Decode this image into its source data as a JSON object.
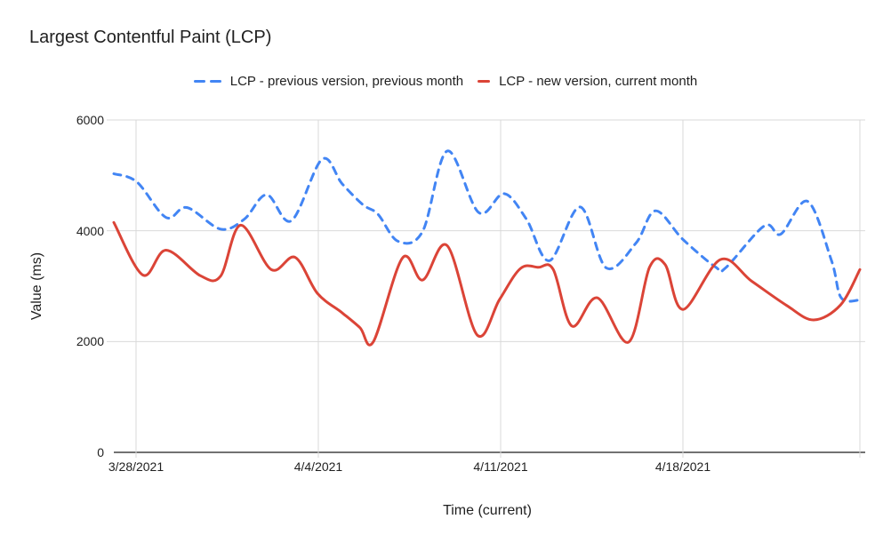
{
  "chart_data": {
    "type": "line",
    "title": "Largest Contentful Paint (LCP)",
    "xlabel": "Time (current)",
    "ylabel": "Value (ms)",
    "ylim": [
      0,
      6000
    ],
    "grid": true,
    "smooth": true,
    "legend_position": "top",
    "background": "#ffffff",
    "colors": {
      "grid": "#d9d9d9",
      "axis": "#444444",
      "text": "#202124"
    },
    "y_ticks": [
      {
        "label": "0",
        "value": 0
      },
      {
        "label": "2000",
        "value": 2000
      },
      {
        "label": "4000",
        "value": 4000
      },
      {
        "label": "6000",
        "value": 6000
      }
    ],
    "x_ticks": [
      {
        "label": "3/28/2021",
        "pos": 2.98
      },
      {
        "label": "4/4/2021",
        "pos": 27.41
      },
      {
        "label": "4/11/2021",
        "pos": 51.85
      },
      {
        "label": "4/18/2021",
        "pos": 76.28
      }
    ],
    "right_edge_gridline": true,
    "series": [
      {
        "name": "LCP - previous version, previous month",
        "color": "#4285f4",
        "style": "dashed",
        "points": [
          [
            0,
            5030
          ],
          [
            3.1,
            4880
          ],
          [
            7.0,
            4240
          ],
          [
            9.8,
            4420
          ],
          [
            14.3,
            4030
          ],
          [
            17.5,
            4210
          ],
          [
            20.5,
            4650
          ],
          [
            23.8,
            4180
          ],
          [
            27.9,
            5290
          ],
          [
            30.6,
            4850
          ],
          [
            33.4,
            4470
          ],
          [
            35.4,
            4300
          ],
          [
            38.1,
            3810
          ],
          [
            41.4,
            3990
          ],
          [
            44.7,
            5440
          ],
          [
            48.9,
            4330
          ],
          [
            52.3,
            4670
          ],
          [
            55.3,
            4210
          ],
          [
            58.4,
            3460
          ],
          [
            62.5,
            4430
          ],
          [
            66.0,
            3330
          ],
          [
            70.0,
            3780
          ],
          [
            72.6,
            4360
          ],
          [
            76.3,
            3840
          ],
          [
            80.7,
            3340
          ],
          [
            82.0,
            3330
          ],
          [
            87.2,
            4090
          ],
          [
            89.4,
            3940
          ],
          [
            93.0,
            4530
          ],
          [
            96.2,
            3460
          ],
          [
            97.5,
            2790
          ],
          [
            100,
            2750
          ]
        ]
      },
      {
        "name": "LCP - new version, current month",
        "color": "#db4437",
        "style": "solid",
        "points": [
          [
            0,
            4150
          ],
          [
            3.9,
            3200
          ],
          [
            7.0,
            3650
          ],
          [
            11.6,
            3190
          ],
          [
            14.3,
            3180
          ],
          [
            17.0,
            4100
          ],
          [
            21.1,
            3300
          ],
          [
            24.3,
            3520
          ],
          [
            27.3,
            2870
          ],
          [
            30.6,
            2520
          ],
          [
            33.0,
            2250
          ],
          [
            34.8,
            2000
          ],
          [
            38.7,
            3510
          ],
          [
            41.4,
            3110
          ],
          [
            44.7,
            3730
          ],
          [
            48.7,
            2120
          ],
          [
            51.7,
            2760
          ],
          [
            54.5,
            3320
          ],
          [
            56.9,
            3340
          ],
          [
            58.9,
            3300
          ],
          [
            61.4,
            2280
          ],
          [
            64.8,
            2790
          ],
          [
            69.0,
            1990
          ],
          [
            71.8,
            3340
          ],
          [
            73.9,
            3390
          ],
          [
            76.3,
            2580
          ],
          [
            81.3,
            3480
          ],
          [
            85.5,
            3090
          ],
          [
            90.2,
            2650
          ],
          [
            93.8,
            2390
          ],
          [
            97.4,
            2660
          ],
          [
            100,
            3300
          ]
        ]
      }
    ]
  }
}
